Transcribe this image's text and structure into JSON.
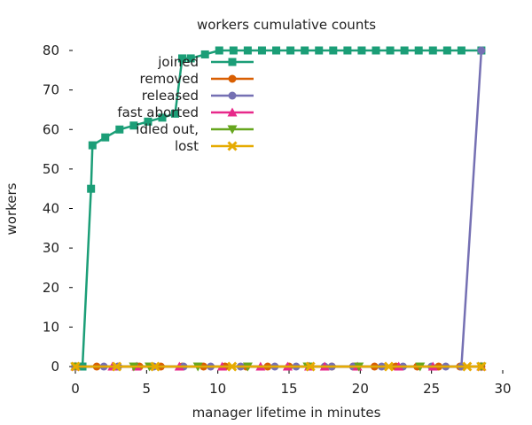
{
  "chart_data": {
    "type": "line",
    "title": "workers cumulative counts",
    "xlabel": "manager lifetime in minutes",
    "ylabel": "workers",
    "xlim": [
      0,
      30
    ],
    "ylim": [
      0,
      80
    ],
    "xticks": [
      0,
      5,
      10,
      15,
      20,
      25,
      30
    ],
    "yticks": [
      0,
      10,
      20,
      30,
      40,
      50,
      60,
      70,
      80
    ],
    "grid": false,
    "legend_position": "top-left-inside",
    "series": [
      {
        "name": "joined",
        "color": "#1b9e77",
        "marker": "square",
        "x": [
          0,
          0.5,
          1.1,
          1.2,
          2.1,
          3.1,
          4.1,
          5.1,
          6.1,
          7.0,
          7.5,
          8.1,
          9.1,
          10.1,
          11.1,
          12.1,
          13.1,
          14.1,
          15.1,
          16.1,
          17.1,
          18.1,
          19.1,
          20.1,
          21.1,
          22.1,
          23.1,
          24.1,
          25.1,
          26.1,
          27.1,
          28.5
        ],
        "y": [
          0,
          0,
          45,
          56,
          58,
          60,
          61,
          62,
          63,
          64,
          78,
          78,
          79,
          80,
          80,
          80,
          80,
          80,
          80,
          80,
          80,
          80,
          80,
          80,
          80,
          80,
          80,
          80,
          80,
          80,
          80,
          80
        ]
      },
      {
        "name": "removed",
        "color": "#d95f02",
        "marker": "circle",
        "x": [
          0,
          1.5,
          3.0,
          4.5,
          6.0,
          7.5,
          9.0,
          10.5,
          12.0,
          13.5,
          15.0,
          16.5,
          18.0,
          19.5,
          21.0,
          22.5,
          24.0,
          25.5,
          27.0,
          28.5
        ],
        "y": [
          0,
          0,
          0,
          0,
          0,
          0,
          0,
          0,
          0,
          0,
          0,
          0,
          0,
          0,
          0,
          0,
          0,
          0,
          0,
          0
        ]
      },
      {
        "name": "released",
        "color": "#7570b3",
        "marker": "circle",
        "x": [
          0,
          2.0,
          3.0,
          5.5,
          7.6,
          9.5,
          11.6,
          14.0,
          15.5,
          17.5,
          18.0,
          19.5,
          21.5,
          23.0,
          25.0,
          26.0,
          27.1,
          28.5
        ],
        "y": [
          0,
          0,
          0,
          0,
          0,
          0,
          0,
          0,
          0,
          0,
          0,
          0,
          0,
          0,
          0,
          0,
          0,
          80
        ]
      },
      {
        "name": "fast aborted",
        "color": "#e7298a",
        "marker": "triangle",
        "x": [
          0,
          2.6,
          4.3,
          7.3,
          10.3,
          13.0,
          14.9,
          16.4,
          17.5,
          19.8,
          22.7,
          25.1,
          28.5
        ],
        "y": [
          0,
          0,
          0,
          0,
          0,
          0,
          0,
          0,
          0,
          0,
          0,
          0,
          0
        ]
      },
      {
        "name": "idled out,",
        "color": "#66a61e",
        "marker": "triangle-down",
        "x": [
          0,
          4.1,
          5.2,
          8.6,
          12.1,
          16.3,
          19.9,
          24.2,
          28.5
        ],
        "y": [
          0,
          0,
          0,
          0,
          0,
          0,
          0,
          0,
          0
        ]
      },
      {
        "name": "lost",
        "color": "#e6ab02",
        "marker": "x",
        "x": [
          0,
          2.9,
          5.6,
          11.0,
          16.5,
          22.0,
          27.5,
          28.5
        ],
        "y": [
          0,
          0,
          0,
          0,
          0,
          0,
          0,
          0
        ]
      }
    ]
  }
}
